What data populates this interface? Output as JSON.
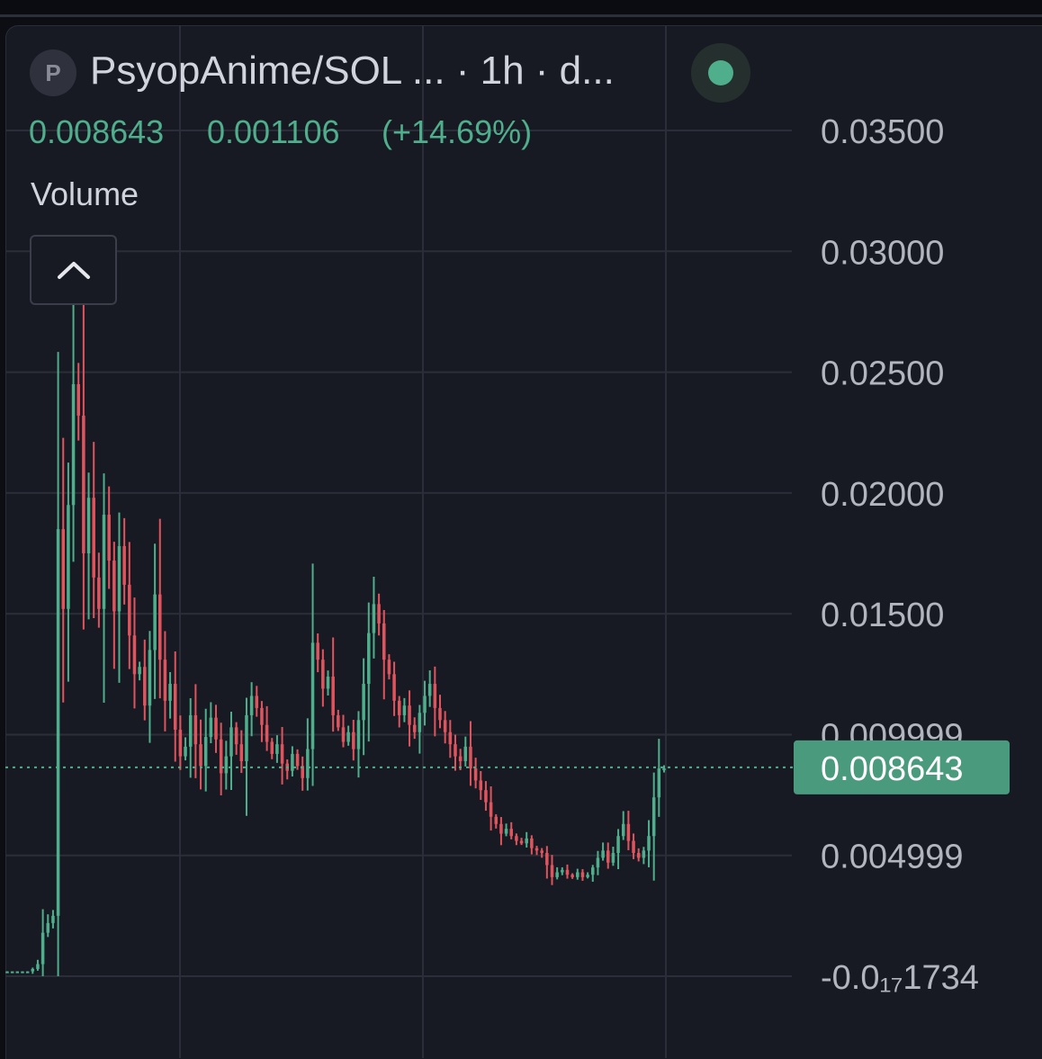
{
  "header": {
    "badge_letter": "P",
    "title": "PsyopAnime/SOL ... · 1h · d...",
    "status_color": "#4fae8b"
  },
  "legend": {
    "last_price": "0.008643",
    "change": "0.001106",
    "change_pct": "(+14.69%)",
    "color": "#4fae8b"
  },
  "volume_label": "Volume",
  "colors": {
    "up": "#4fae8b",
    "down": "#e0545e",
    "price_tag_bg": "#4a9b7e",
    "axis_text": "#b2b5be",
    "grid": "#2b2e38"
  },
  "chart_data": {
    "type": "candlestick",
    "timeframe": "1h",
    "y_axis_ticks": [
      {
        "value": 0.035,
        "label": "0.03500"
      },
      {
        "value": 0.03,
        "label": "0.03000"
      },
      {
        "value": 0.025,
        "label": "0.02500"
      },
      {
        "value": 0.02,
        "label": "0.02000"
      },
      {
        "value": 0.015,
        "label": "0.01500"
      },
      {
        "value": 0.009999,
        "label": "0.009999"
      },
      {
        "value": 0.004999,
        "label": "0.004999"
      },
      {
        "value": 0,
        "label": "-0.0₁₇1734"
      }
    ],
    "ylim": [
      -0.0035,
      0.0385
    ],
    "last_price": {
      "value": 0.008643,
      "label": "0.008643"
    },
    "close_series": [
      0.0002,
      0.0002,
      0.0002,
      0.0002,
      0.0002,
      0.0003,
      0.0005,
      0.0018,
      0.0022,
      0.0025,
      0.0185,
      0.0152,
      0.0195,
      0.0245,
      0.0232,
      0.0175,
      0.0198,
      0.0165,
      0.0152,
      0.0191,
      0.0172,
      0.0151,
      0.0178,
      0.0162,
      0.0141,
      0.0125,
      0.0128,
      0.0112,
      0.0135,
      0.0158,
      0.0131,
      0.0114,
      0.0121,
      0.0102,
      0.0091,
      0.0095,
      0.0108,
      0.0096,
      0.0087,
      0.0099,
      0.0107,
      0.0098,
      0.0084,
      0.0091,
      0.0103,
      0.0096,
      0.0089,
      0.0108,
      0.0116,
      0.0111,
      0.0104,
      0.0097,
      0.0092,
      0.0096,
      0.0088,
      0.0085,
      0.0092,
      0.0087,
      0.0082,
      0.0094,
      0.0138,
      0.0131,
      0.0119,
      0.0124,
      0.0108,
      0.0103,
      0.0097,
      0.0101,
      0.0094,
      0.0106,
      0.0121,
      0.0142,
      0.0154,
      0.0146,
      0.0131,
      0.0125,
      0.0114,
      0.0108,
      0.0112,
      0.0104,
      0.0101,
      0.0109,
      0.0116,
      0.0121,
      0.0111,
      0.0106,
      0.0101,
      0.0096,
      0.0091,
      0.0089,
      0.0095,
      0.0086,
      0.0081,
      0.0077,
      0.0072,
      0.0066,
      0.0063,
      0.0059,
      0.0061,
      0.0058,
      0.0056,
      0.0055,
      0.0057,
      0.0053,
      0.0052,
      0.0051,
      0.0046,
      0.0041,
      0.0043,
      0.0044,
      0.0042,
      0.0041,
      0.0043,
      0.0041,
      0.0042,
      0.0045,
      0.0049,
      0.0052,
      0.0047,
      0.0051,
      0.0058,
      0.0063,
      0.0056,
      0.0051,
      0.0049,
      0.0052,
      0.0058,
      0.0074,
      0.0086,
      0.0086
    ]
  }
}
